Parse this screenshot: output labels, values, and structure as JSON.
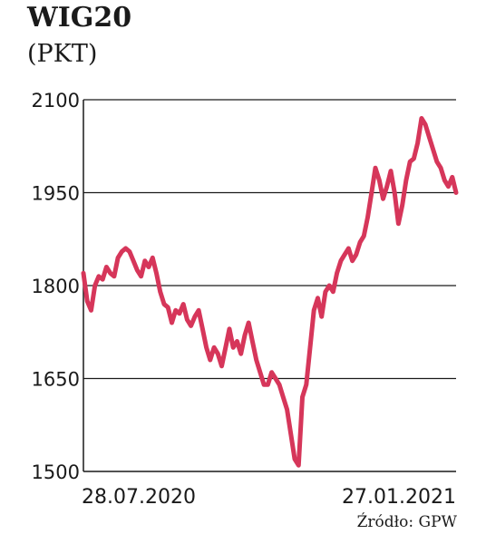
{
  "chart_data": {
    "type": "line",
    "title": "WIG20",
    "unit": "(PKT)",
    "source": "Źródło: GPW",
    "ylim": [
      1500,
      2100
    ],
    "yticks": [
      "2100",
      "1950",
      "1800",
      "1650",
      "1500"
    ],
    "x_labels": [
      "28.07.2020",
      "27.01.2021"
    ],
    "grid": "horizontal",
    "series_color": "#d6365a",
    "series": [
      {
        "values": [
          1820,
          1775,
          1760,
          1800,
          1815,
          1810,
          1830,
          1820,
          1815,
          1845,
          1855,
          1860,
          1855,
          1840,
          1825,
          1815,
          1840,
          1830,
          1845,
          1820,
          1790,
          1770,
          1765,
          1740,
          1760,
          1755,
          1770,
          1745,
          1735,
          1750,
          1760,
          1730,
          1700,
          1680,
          1700,
          1690,
          1670,
          1700,
          1730,
          1700,
          1710,
          1690,
          1720,
          1740,
          1710,
          1680,
          1660,
          1640,
          1640,
          1660,
          1650,
          1640,
          1620,
          1600,
          1560,
          1520,
          1510,
          1620,
          1640,
          1700,
          1760,
          1780,
          1750,
          1790,
          1800,
          1790,
          1820,
          1840,
          1850,
          1860,
          1840,
          1850,
          1870,
          1880,
          1910,
          1950,
          1990,
          1970,
          1940,
          1960,
          1985,
          1950,
          1900,
          1930,
          1970,
          2000,
          2005,
          2030,
          2070,
          2060,
          2040,
          2020,
          2000,
          1990,
          1970,
          1960,
          1975,
          1950
        ]
      }
    ]
  }
}
